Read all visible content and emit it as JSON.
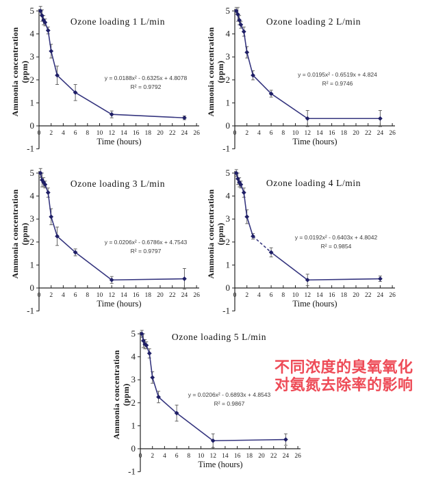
{
  "page": {
    "background": "#ffffff"
  },
  "annotation": {
    "line1": "不同浓度的臭氧氧化",
    "line2": "对氨氮去除率的影响",
    "color": "#ee4b57"
  },
  "chart_data": [
    {
      "type": "line",
      "title": "Ozone loading 1 L/min",
      "xlabel": "Time (hours)",
      "ylabel": "Ammonia concentration",
      "ylabel2": "(ppm)",
      "xlim": [
        0,
        26
      ],
      "ylim": [
        -1,
        5
      ],
      "xticks": [
        0,
        2,
        4,
        6,
        8,
        10,
        12,
        14,
        16,
        18,
        20,
        22,
        24,
        26
      ],
      "yticks": [
        -1,
        0,
        1,
        2,
        3,
        4,
        5
      ],
      "grid": false,
      "legend": "none",
      "x": [
        0.25,
        0.5,
        0.75,
        1,
        1.5,
        2,
        3,
        6,
        12,
        24
      ],
      "y": [
        5.0,
        4.8,
        4.6,
        4.5,
        4.15,
        3.25,
        2.2,
        1.45,
        0.5,
        0.35
      ],
      "err": [
        0.2,
        0.25,
        0.2,
        0.15,
        0.15,
        0.3,
        0.4,
        0.35,
        0.15,
        0.08
      ],
      "equation": "y = 0.0188x² - 0.6325x + 4.8078",
      "r2_label": "R² = 0.9792",
      "line_color": "#34347e",
      "marker_color": "#1f1f66",
      "error_color": "#555555",
      "dash_segment": null
    },
    {
      "type": "line",
      "title": "Ozone loading 2 L/min",
      "xlabel": "Time (hours)",
      "ylabel": "Ammonia concentration",
      "ylabel2": "(ppm)",
      "xlim": [
        0,
        26
      ],
      "ylim": [
        -1,
        5
      ],
      "xticks": [
        0,
        2,
        4,
        6,
        8,
        10,
        12,
        14,
        16,
        18,
        20,
        22,
        24,
        26
      ],
      "yticks": [
        -1,
        0,
        1,
        2,
        3,
        4,
        5
      ],
      "grid": false,
      "legend": "none",
      "x": [
        0.25,
        0.5,
        0.75,
        1,
        1.5,
        2,
        3,
        6,
        12,
        24
      ],
      "y": [
        5.0,
        4.85,
        4.6,
        4.4,
        4.1,
        3.2,
        2.2,
        1.4,
        0.32,
        0.32
      ],
      "err": [
        0.15,
        0.3,
        0.2,
        0.15,
        0.2,
        0.25,
        0.2,
        0.15,
        0.35,
        0.35
      ],
      "equation": "y = 0.0195x² - 0.6519x + 4.824",
      "r2_label": "R² = 0.9746",
      "line_color": "#34347e",
      "marker_color": "#1f1f66",
      "error_color": "#555555",
      "dash_segment": null
    },
    {
      "type": "line",
      "title": "Ozone loading 3 L/min",
      "xlabel": "Time (hours)",
      "ylabel": "Ammonia concentration",
      "ylabel2": "(ppm)",
      "xlim": [
        0,
        26
      ],
      "ylim": [
        -1,
        5
      ],
      "xticks": [
        0,
        2,
        4,
        6,
        8,
        10,
        12,
        14,
        16,
        18,
        20,
        22,
        24,
        26
      ],
      "yticks": [
        -1,
        0,
        1,
        2,
        3,
        4,
        5
      ],
      "grid": false,
      "legend": "none",
      "x": [
        0.25,
        0.5,
        0.75,
        1,
        1.5,
        2,
        3,
        6,
        12,
        24
      ],
      "y": [
        5.0,
        4.7,
        4.6,
        4.5,
        4.15,
        3.1,
        2.25,
        1.55,
        0.35,
        0.4
      ],
      "err": [
        0.2,
        0.3,
        0.2,
        0.15,
        0.2,
        0.35,
        0.4,
        0.15,
        0.15,
        0.45
      ],
      "equation": "y = 0.0206x² - 0.6786x + 4.7543",
      "r2_label": "R² = 0.9797",
      "line_color": "#34347e",
      "marker_color": "#1f1f66",
      "error_color": "#555555",
      "dash_segment": null
    },
    {
      "type": "line",
      "title": "Ozone loading 4 L/min",
      "xlabel": "Time (hours)",
      "ylabel": "Ammonia concentration",
      "ylabel2": "(ppm)",
      "xlim": [
        0,
        26
      ],
      "ylim": [
        -1,
        5
      ],
      "xticks": [
        0,
        2,
        4,
        6,
        8,
        10,
        12,
        14,
        16,
        18,
        20,
        22,
        24,
        26
      ],
      "yticks": [
        -1,
        0,
        1,
        2,
        3,
        4,
        5
      ],
      "grid": false,
      "legend": "none",
      "x": [
        0.25,
        0.5,
        0.75,
        1,
        1.5,
        2,
        3,
        6,
        12,
        24
      ],
      "y": [
        5.0,
        4.75,
        4.6,
        4.5,
        4.15,
        3.1,
        2.25,
        1.55,
        0.35,
        0.4
      ],
      "err": [
        0.15,
        0.25,
        0.2,
        0.15,
        0.2,
        0.3,
        0.12,
        0.2,
        0.25,
        0.12
      ],
      "equation": "y = 0.0192x² - 0.6403x + 4.8042",
      "r2_label": "R² = 0.9854",
      "line_color": "#34347e",
      "marker_color": "#1f1f66",
      "error_color": "#555555",
      "dash_segment": [
        6,
        7
      ]
    },
    {
      "type": "line",
      "title": "Ozone loading 5 L/min",
      "xlabel": "Time (hours)",
      "ylabel": "Ammonia concentration",
      "ylabel2": "(ppm)",
      "xlim": [
        0,
        26
      ],
      "ylim": [
        -1,
        5
      ],
      "xticks": [
        0,
        2,
        4,
        6,
        8,
        10,
        12,
        14,
        16,
        18,
        20,
        22,
        24,
        26
      ],
      "yticks": [
        -1,
        0,
        1,
        2,
        3,
        4,
        5
      ],
      "grid": false,
      "legend": "none",
      "x": [
        0.25,
        0.5,
        0.75,
        1,
        1.5,
        2,
        3,
        6,
        12,
        24
      ],
      "y": [
        5.0,
        4.7,
        4.55,
        4.5,
        4.15,
        3.1,
        2.25,
        1.55,
        0.35,
        0.4
      ],
      "err": [
        0.15,
        0.3,
        0.2,
        0.15,
        0.2,
        0.25,
        0.25,
        0.35,
        0.3,
        0.25
      ],
      "equation": "y = 0.0206x² - 0.6893x + 4.8543",
      "r2_label": "R² = 0.9867",
      "line_color": "#34347e",
      "marker_color": "#1f1f66",
      "error_color": "#555555",
      "dash_segment": null
    }
  ]
}
